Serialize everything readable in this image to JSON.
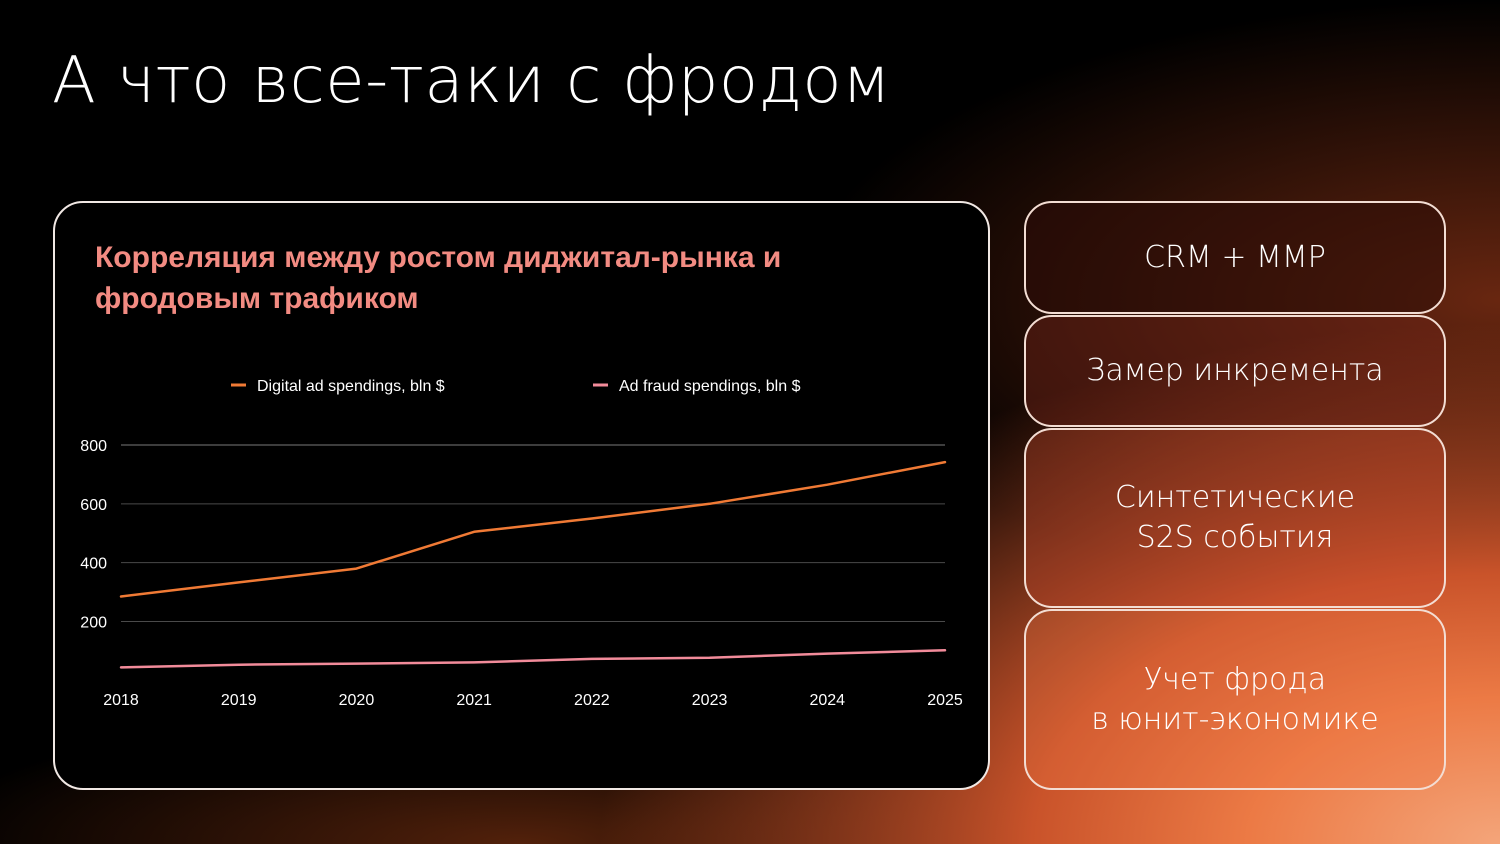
{
  "title": "А что все-таки с фродом",
  "side_items": [
    "CRM + MMP",
    "Замер инкремента",
    "Синтетические\nS2S события",
    "Учет фрода\nв юнит-экономике"
  ],
  "colors": {
    "accent_orange": "#f07a35",
    "accent_pink": "#f28b9a",
    "heading_pink": "#f28b82"
  },
  "chart_data": {
    "type": "line",
    "title": "Корреляция между ростом диджитал-рынка и фродовым трафиком",
    "x": [
      "2018",
      "2019",
      "2020",
      "2021",
      "2022",
      "2023",
      "2024",
      "2025"
    ],
    "series": [
      {
        "name": "Digital ad spendings, bln $",
        "color": "#f07a35",
        "values": [
          285,
          333,
          380,
          505,
          550,
          600,
          665,
          742
        ]
      },
      {
        "name": "Ad fraud spendings, bln $",
        "color": "#f28b9a",
        "values": [
          44,
          53,
          57,
          61,
          73,
          77,
          91,
          102
        ]
      }
    ],
    "yticks": [
      200,
      400,
      600,
      800
    ],
    "ylim": [
      0,
      800
    ],
    "grid": true,
    "legend": "top"
  }
}
